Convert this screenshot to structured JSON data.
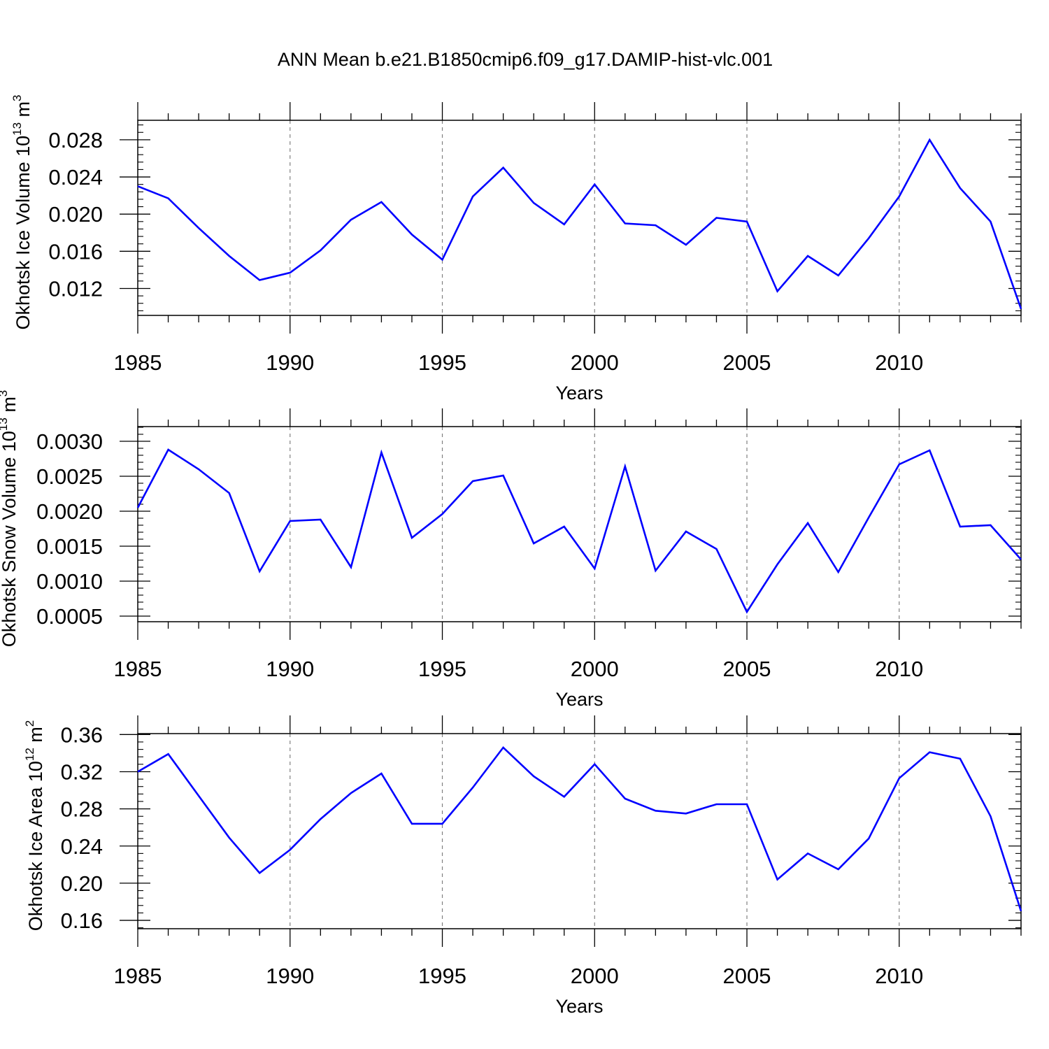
{
  "title": "ANN Mean b.e21.B1850cmip6.f09_g17.DAMIP-hist-vlc.001",
  "colors": {
    "line": "#0000ff",
    "axis": "#000000",
    "grid": "#808080"
  },
  "chart_data": [
    {
      "type": "line",
      "ylabel": {
        "main": "Okhotsk Ice Volume 10",
        "sup": "13",
        "unit": " m",
        "unit_sup": "3"
      },
      "xlabel": "Years",
      "xlim": [
        1985,
        2014
      ],
      "ylim": [
        0.0091,
        0.0301
      ],
      "xticks": [
        1985,
        1990,
        1995,
        2000,
        2005,
        2010
      ],
      "yticks": [
        "0.012",
        "0.016",
        "0.020",
        "0.024",
        "0.028"
      ],
      "grid": "vertical dashed at major x ticks",
      "series": [
        {
          "x": [
            1985,
            1986,
            1987,
            1988,
            1989,
            1990,
            1991,
            1992,
            1993,
            1994,
            1995,
            1996,
            1997,
            1998,
            1999,
            2000,
            2001,
            2002,
            2003,
            2004,
            2005,
            2006,
            2007,
            2008,
            2009,
            2010,
            2011,
            2012,
            2013,
            2014
          ],
          "values": [
            0.023,
            0.0217,
            0.0185,
            0.0155,
            0.0129,
            0.0137,
            0.0161,
            0.0194,
            0.0213,
            0.0178,
            0.0151,
            0.0219,
            0.025,
            0.0212,
            0.0189,
            0.0232,
            0.019,
            0.0188,
            0.0167,
            0.0196,
            0.0192,
            0.0117,
            0.0155,
            0.0134,
            0.0174,
            0.0219,
            0.028,
            0.0228,
            0.0192,
            0.0098
          ]
        }
      ]
    },
    {
      "type": "line",
      "ylabel": {
        "main": "Okhotsk Snow Volume 10",
        "sup": "13",
        "unit": " m",
        "unit_sup": "3"
      },
      "xlabel": "Years",
      "xlim": [
        1985,
        2014
      ],
      "ylim": [
        0.00042,
        0.00321
      ],
      "xticks": [
        1985,
        1990,
        1995,
        2000,
        2005,
        2010
      ],
      "yticks": [
        "0.0005",
        "0.0010",
        "0.0015",
        "0.0020",
        "0.0025",
        "0.0030"
      ],
      "grid": "vertical dashed at major x ticks",
      "series": [
        {
          "x": [
            1985,
            1986,
            1987,
            1988,
            1989,
            1990,
            1991,
            1992,
            1993,
            1994,
            1995,
            1996,
            1997,
            1998,
            1999,
            2000,
            2001,
            2002,
            2003,
            2004,
            2005,
            2006,
            2007,
            2008,
            2009,
            2010,
            2011,
            2012,
            2013,
            2014
          ],
          "values": [
            0.00205,
            0.00288,
            0.0026,
            0.00226,
            0.00114,
            0.00186,
            0.00188,
            0.0012,
            0.00284,
            0.00162,
            0.00196,
            0.00243,
            0.00251,
            0.00154,
            0.00178,
            0.00118,
            0.00264,
            0.00115,
            0.00171,
            0.00146,
            0.00056,
            0.00124,
            0.00183,
            0.00113,
            0.00191,
            0.00267,
            0.00287,
            0.00178,
            0.0018,
            0.00131
          ]
        }
      ]
    },
    {
      "type": "line",
      "ylabel": {
        "main": "Okhotsk Ice Area 10",
        "sup": "12",
        "unit": " m",
        "unit_sup": "2"
      },
      "xlabel": "Years",
      "xlim": [
        1985,
        2014
      ],
      "ylim": [
        0.151,
        0.361
      ],
      "xticks": [
        1985,
        1990,
        1995,
        2000,
        2005,
        2010
      ],
      "yticks": [
        "0.16",
        "0.20",
        "0.24",
        "0.28",
        "0.32",
        "0.36"
      ],
      "grid": "vertical dashed at major x ticks",
      "series": [
        {
          "x": [
            1985,
            1986,
            1987,
            1988,
            1989,
            1990,
            1991,
            1992,
            1993,
            1994,
            1995,
            1996,
            1997,
            1998,
            1999,
            2000,
            2001,
            2002,
            2003,
            2004,
            2005,
            2006,
            2007,
            2008,
            2009,
            2010,
            2011,
            2012,
            2013,
            2014
          ],
          "values": [
            0.32,
            0.339,
            0.294,
            0.249,
            0.211,
            0.236,
            0.269,
            0.297,
            0.318,
            0.264,
            0.264,
            0.303,
            0.346,
            0.315,
            0.293,
            0.328,
            0.291,
            0.278,
            0.275,
            0.285,
            0.285,
            0.204,
            0.232,
            0.215,
            0.248,
            0.313,
            0.341,
            0.334,
            0.272,
            0.17
          ]
        }
      ]
    }
  ]
}
